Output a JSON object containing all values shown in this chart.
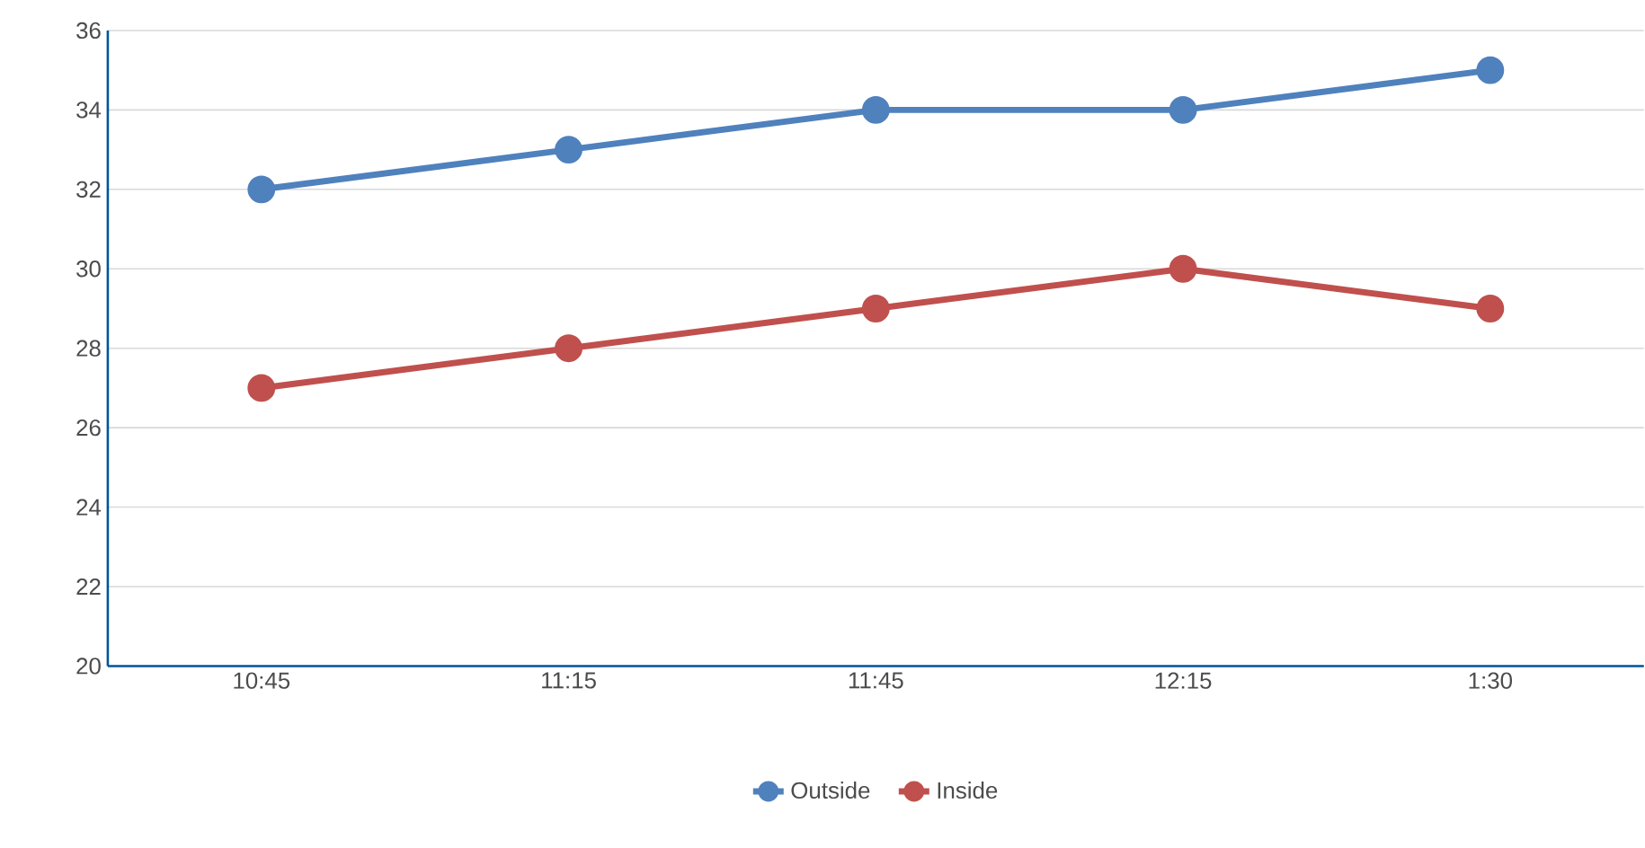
{
  "chart_data": {
    "type": "line",
    "categories": [
      "10:45",
      "11:15",
      "11:45",
      "12:15",
      "1:30"
    ],
    "series": [
      {
        "name": "Outside",
        "color": "#4f81bd",
        "values": [
          32,
          33,
          34,
          34,
          35
        ]
      },
      {
        "name": "Inside",
        "color": "#c0504d",
        "values": [
          27,
          28,
          29,
          30,
          29
        ]
      }
    ],
    "ylim": [
      20,
      36
    ],
    "yticks": [
      20,
      22,
      24,
      26,
      28,
      30,
      32,
      34,
      36
    ],
    "grid": "y",
    "legend": "bottom",
    "marker": "circle",
    "line_style": "solid"
  }
}
